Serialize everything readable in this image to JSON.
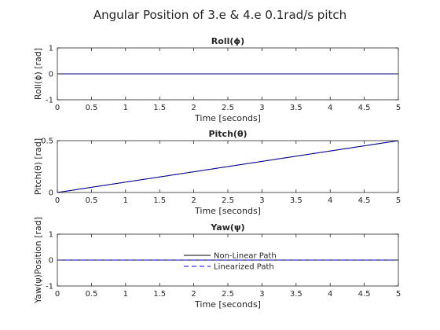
{
  "figure_title": "Angular Position of 3.e & 4.e 0.1rad/s pitch",
  "chart_data": [
    {
      "type": "line",
      "title": "Roll(ϕ)",
      "xlabel": "Time [seconds]",
      "ylabel": "Roll(ϕ) [rad]",
      "xlim": [
        0,
        5
      ],
      "ylim": [
        -1,
        1
      ],
      "xticks": [
        "0",
        "0.5",
        "1",
        "1.5",
        "2",
        "2.5",
        "3",
        "3.5",
        "4",
        "4.5",
        "5"
      ],
      "yticks": [
        "-1",
        "0",
        "1"
      ],
      "series": [
        {
          "color": "#000080",
          "style": "solid",
          "x": [
            0,
            5
          ],
          "y": [
            0,
            0
          ]
        }
      ]
    },
    {
      "type": "line",
      "title": "Pitch(θ)",
      "xlabel": "Time [seconds]",
      "ylabel": "Pitch(θ) [rad]",
      "xlim": [
        0,
        5
      ],
      "ylim": [
        0,
        0.5
      ],
      "xticks": [
        "0",
        "0.5",
        "1",
        "1.5",
        "2",
        "2.5",
        "3",
        "3.5",
        "4",
        "4.5",
        "5"
      ],
      "yticks": [
        "0",
        "0.5"
      ],
      "series": [
        {
          "color": "#000000",
          "style": "solid",
          "x": [
            0,
            5
          ],
          "y": [
            0,
            0.5
          ]
        },
        {
          "color": "#0000ff",
          "style": "dashed",
          "x": [
            0,
            5
          ],
          "y": [
            0,
            0.5
          ]
        }
      ]
    },
    {
      "type": "line",
      "title": "Yaw(ψ)",
      "xlabel": "Time [seconds]",
      "ylabel": "Yaw(ψ)Position [rad]",
      "xlim": [
        0,
        5
      ],
      "ylim": [
        -1,
        1
      ],
      "xticks": [
        "0",
        "0.5",
        "1",
        "1.5",
        "2",
        "2.5",
        "3",
        "3.5",
        "4",
        "4.5",
        "5"
      ],
      "yticks": [
        "-1",
        "0",
        "1"
      ],
      "legend": {
        "placement": "center"
      },
      "series": [
        {
          "name": "Non-Linear Path",
          "color": "#000000",
          "style": "solid",
          "x": [
            0,
            5
          ],
          "y": [
            0,
            0
          ]
        },
        {
          "name": "Linearized Path",
          "color": "#0000ff",
          "style": "dashed",
          "x": [
            0,
            5
          ],
          "y": [
            0,
            0
          ]
        }
      ]
    }
  ]
}
